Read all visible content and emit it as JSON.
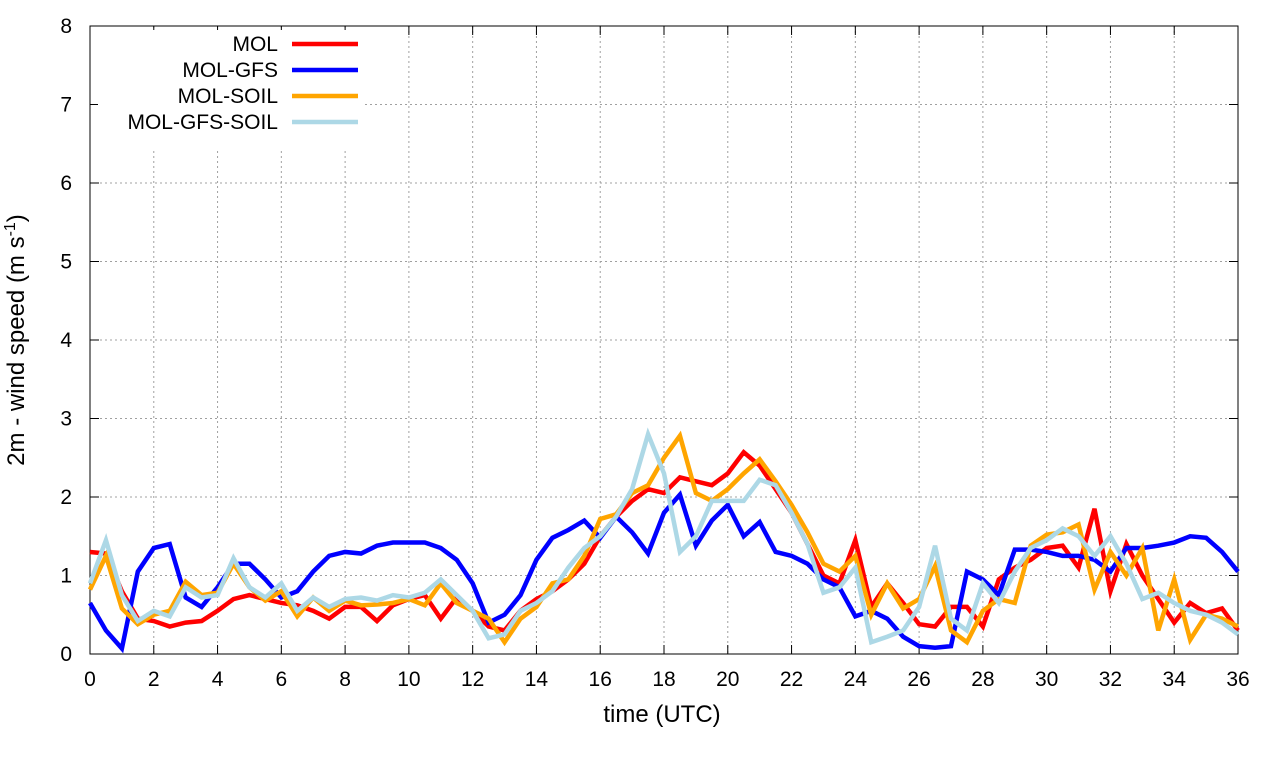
{
  "chart_data": {
    "type": "line",
    "xlabel": "time (UTC)",
    "ylabel": [
      "2m - wind speed  (m s",
      "-1",
      ")"
    ],
    "xlim": [
      0,
      36
    ],
    "xticks": [
      0,
      2,
      4,
      6,
      8,
      10,
      12,
      14,
      16,
      18,
      20,
      22,
      24,
      26,
      28,
      30,
      32,
      34,
      36
    ],
    "ylim": [
      0,
      8
    ],
    "yticks": [
      0,
      1,
      2,
      3,
      4,
      5,
      6,
      7,
      8
    ],
    "grid": true,
    "legend": "top-left",
    "x": [
      0,
      0.5,
      1,
      1.5,
      2,
      2.5,
      3,
      3.5,
      4,
      4.5,
      5,
      5.5,
      6,
      6.5,
      7,
      7.5,
      8,
      8.5,
      9,
      9.5,
      10,
      10.5,
      11,
      11.5,
      12,
      12.5,
      13,
      13.5,
      14,
      14.5,
      15,
      15.5,
      16,
      16.5,
      17,
      17.5,
      18,
      18.5,
      19,
      19.5,
      20,
      20.5,
      21,
      21.5,
      22,
      22.5,
      23,
      23.5,
      24,
      24.5,
      25,
      25.5,
      26,
      26.5,
      27,
      27.5,
      28,
      28.5,
      29,
      29.5,
      30,
      30.5,
      31,
      31.5,
      32,
      32.5,
      33,
      33.5,
      34,
      34.5,
      35,
      35.5,
      36
    ],
    "series": [
      {
        "name": "MOL",
        "color": "#ff0000",
        "values": [
          1.3,
          1.28,
          0.8,
          0.45,
          0.42,
          0.35,
          0.4,
          0.42,
          0.55,
          0.7,
          0.75,
          0.7,
          0.65,
          0.62,
          0.55,
          0.45,
          0.6,
          0.6,
          0.42,
          0.62,
          0.7,
          0.75,
          0.45,
          0.72,
          0.55,
          0.35,
          0.3,
          0.55,
          0.7,
          0.8,
          0.95,
          1.15,
          1.5,
          1.75,
          1.95,
          2.1,
          2.05,
          2.25,
          2.2,
          2.15,
          2.3,
          2.57,
          2.4,
          2.1,
          1.8,
          1.4,
          1.0,
          0.9,
          1.45,
          0.6,
          0.9,
          0.65,
          0.38,
          0.35,
          0.6,
          0.6,
          0.35,
          0.95,
          1.1,
          1.2,
          1.35,
          1.38,
          1.1,
          1.85,
          0.8,
          1.4,
          1.0,
          0.7,
          0.4,
          0.65,
          0.52,
          0.58,
          0.3
        ]
      },
      {
        "name": "MOL-GFS",
        "color": "#0000ff",
        "values": [
          0.65,
          0.3,
          0.07,
          1.05,
          1.35,
          1.4,
          0.72,
          0.6,
          0.85,
          1.15,
          1.15,
          0.95,
          0.72,
          0.8,
          1.05,
          1.25,
          1.3,
          1.28,
          1.38,
          1.42,
          1.42,
          1.42,
          1.35,
          1.2,
          0.9,
          0.4,
          0.5,
          0.75,
          1.2,
          1.48,
          1.58,
          1.7,
          1.48,
          1.75,
          1.55,
          1.28,
          1.8,
          2.03,
          1.38,
          1.7,
          1.9,
          1.5,
          1.68,
          1.3,
          1.25,
          1.15,
          0.95,
          0.85,
          0.48,
          0.55,
          0.45,
          0.22,
          0.1,
          0.08,
          0.1,
          1.05,
          0.95,
          0.75,
          1.33,
          1.33,
          1.3,
          1.25,
          1.25,
          1.2,
          1.05,
          1.35,
          1.35,
          1.38,
          1.42,
          1.5,
          1.48,
          1.3,
          1.05
        ]
      },
      {
        "name": "MOL-SOIL",
        "color": "#ffa500",
        "values": [
          0.82,
          1.25,
          0.58,
          0.38,
          0.5,
          0.55,
          0.92,
          0.75,
          0.78,
          1.15,
          0.85,
          0.68,
          0.8,
          0.48,
          0.72,
          0.55,
          0.68,
          0.62,
          0.63,
          0.65,
          0.7,
          0.62,
          0.9,
          0.65,
          0.55,
          0.45,
          0.15,
          0.45,
          0.6,
          0.9,
          0.95,
          1.25,
          1.72,
          1.78,
          2.05,
          2.15,
          2.5,
          2.78,
          2.05,
          1.95,
          2.1,
          2.3,
          2.48,
          2.2,
          1.9,
          1.55,
          1.15,
          1.05,
          1.25,
          0.5,
          0.9,
          0.58,
          0.7,
          1.12,
          0.3,
          0.15,
          0.55,
          0.7,
          0.65,
          1.38,
          1.52,
          1.55,
          1.65,
          0.82,
          1.3,
          1.0,
          1.35,
          0.3,
          0.95,
          0.18,
          0.5,
          0.45,
          0.35
        ]
      },
      {
        "name": "MOL-GFS-SOIL",
        "color": "#add8e6",
        "values": [
          0.9,
          1.45,
          0.75,
          0.42,
          0.55,
          0.48,
          0.85,
          0.72,
          0.75,
          1.22,
          0.85,
          0.72,
          0.9,
          0.55,
          0.72,
          0.6,
          0.7,
          0.72,
          0.68,
          0.75,
          0.72,
          0.78,
          0.95,
          0.75,
          0.55,
          0.2,
          0.25,
          0.55,
          0.65,
          0.8,
          1.1,
          1.35,
          1.5,
          1.75,
          2.1,
          2.8,
          2.3,
          1.3,
          1.5,
          1.95,
          1.95,
          1.95,
          2.22,
          2.15,
          1.8,
          1.4,
          0.78,
          0.85,
          1.1,
          0.15,
          0.22,
          0.3,
          0.6,
          1.38,
          0.45,
          0.3,
          0.9,
          0.65,
          1.05,
          1.35,
          1.45,
          1.6,
          1.5,
          1.25,
          1.5,
          1.15,
          0.7,
          0.78,
          0.65,
          0.55,
          0.5,
          0.4,
          0.25
        ]
      }
    ]
  }
}
